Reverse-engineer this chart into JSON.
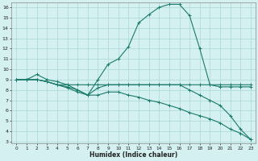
{
  "xlabel": "Humidex (Indice chaleur)",
  "bg_color": "#d4f0f0",
  "grid_color": "#a8d8d8",
  "line_color": "#1a7a6a",
  "xlim": [
    -0.5,
    23.5
  ],
  "ylim": [
    2.8,
    16.5
  ],
  "xticks": [
    0,
    1,
    2,
    3,
    4,
    5,
    6,
    7,
    8,
    9,
    10,
    11,
    12,
    13,
    14,
    15,
    16,
    17,
    18,
    19,
    20,
    21,
    22,
    23
  ],
  "yticks": [
    3,
    4,
    5,
    6,
    7,
    8,
    9,
    10,
    11,
    12,
    13,
    14,
    15,
    16
  ],
  "lines": [
    {
      "x": [
        0,
        1,
        2,
        3,
        4,
        5,
        6,
        7,
        8,
        9,
        10,
        11,
        12,
        13,
        14,
        15,
        16,
        17,
        18,
        19,
        20,
        21,
        22,
        23
      ],
      "y": [
        9,
        9,
        9.5,
        9,
        8.8,
        8.5,
        8.0,
        7.5,
        9.0,
        10.5,
        11.0,
        12.2,
        14.5,
        15.3,
        16.0,
        16.3,
        16.3,
        15.2,
        12.0,
        8.5,
        8.5,
        8.5,
        8.5,
        8.5
      ]
    },
    {
      "x": [
        0,
        1,
        2,
        3,
        4,
        5,
        6,
        7,
        8,
        9,
        10,
        11,
        12,
        13,
        14,
        15,
        16,
        17,
        18,
        19,
        20,
        21,
        22,
        23
      ],
      "y": [
        9,
        9,
        9,
        8.8,
        8.5,
        8.5,
        8.5,
        8.5,
        8.5,
        8.5,
        8.5,
        8.5,
        8.5,
        8.5,
        8.5,
        8.5,
        8.5,
        8.5,
        8.5,
        8.5,
        8.3,
        8.3,
        8.3,
        8.3
      ]
    },
    {
      "x": [
        0,
        1,
        2,
        3,
        4,
        5,
        6,
        7,
        8,
        9,
        10,
        11,
        12,
        13,
        14,
        15,
        16,
        17,
        18,
        19,
        20,
        21,
        22,
        23
      ],
      "y": [
        9,
        9,
        9,
        8.8,
        8.5,
        8.3,
        8.0,
        7.5,
        8.2,
        8.5,
        8.5,
        8.5,
        8.5,
        8.5,
        8.5,
        8.5,
        8.5,
        8.0,
        7.5,
        7.0,
        6.5,
        5.5,
        4.2,
        3.2
      ]
    },
    {
      "x": [
        0,
        1,
        2,
        3,
        4,
        5,
        6,
        7,
        8,
        9,
        10,
        11,
        12,
        13,
        14,
        15,
        16,
        17,
        18,
        19,
        20,
        21,
        22,
        23
      ],
      "y": [
        9,
        9,
        9,
        8.8,
        8.5,
        8.2,
        7.8,
        7.5,
        7.5,
        7.8,
        7.8,
        7.5,
        7.3,
        7.0,
        6.8,
        6.5,
        6.2,
        5.8,
        5.5,
        5.2,
        4.8,
        4.2,
        3.8,
        3.2
      ]
    }
  ]
}
